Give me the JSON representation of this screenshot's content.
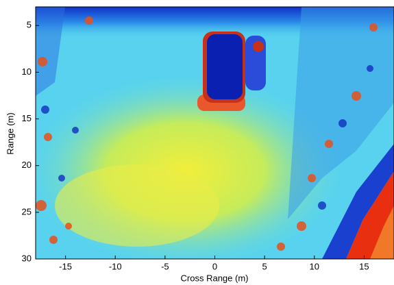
{
  "chart_data": {
    "type": "heatmap",
    "xlabel": "Cross Range (m)",
    "ylabel": "Range (m)",
    "xlim": [
      -18,
      18
    ],
    "xticks": [
      -15,
      -10,
      -5,
      0,
      5,
      10,
      15
    ],
    "ylim": [
      3,
      30
    ],
    "yticks": [
      5,
      10,
      15,
      20,
      25,
      30
    ],
    "y_inverted": true
  }
}
